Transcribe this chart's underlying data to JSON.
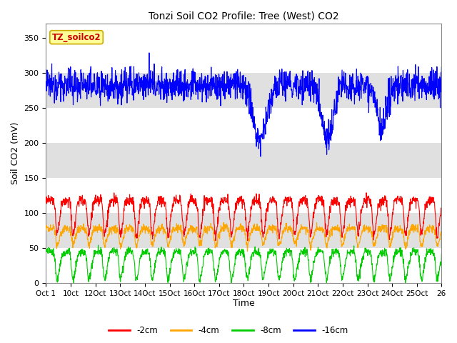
{
  "title": "Tonzi Soil CO2 Profile: Tree (West) CO2",
  "ylabel": "Soil CO2 (mV)",
  "xlabel": "Time",
  "ylim": [
    0,
    370
  ],
  "yticks": [
    0,
    50,
    100,
    150,
    200,
    250,
    300,
    350
  ],
  "xtick_labels": [
    "Oct 1",
    "10ct",
    "12Oct",
    "13Oct",
    "14Oct",
    "15Oct",
    "16Oct",
    "17Oct",
    "18Oct",
    "19Oct",
    "20Oct",
    "21Oct",
    "22Oct",
    "23Oct",
    "24Oct",
    "25Oct",
    "26"
  ],
  "legend_labels": [
    "-2cm",
    "-4cm",
    "-8cm",
    "-16cm"
  ],
  "legend_colors": [
    "#ff0000",
    "#ffa500",
    "#00cc00",
    "#0000ff"
  ],
  "watermark_text": "TZ_soilco2",
  "watermark_bg": "#ffff99",
  "watermark_border": "#ccaa00",
  "watermark_color": "#cc0000",
  "bg_band_color": "#e0e0e0",
  "line_width": 0.8,
  "n_points": 1500,
  "n_days": 25
}
